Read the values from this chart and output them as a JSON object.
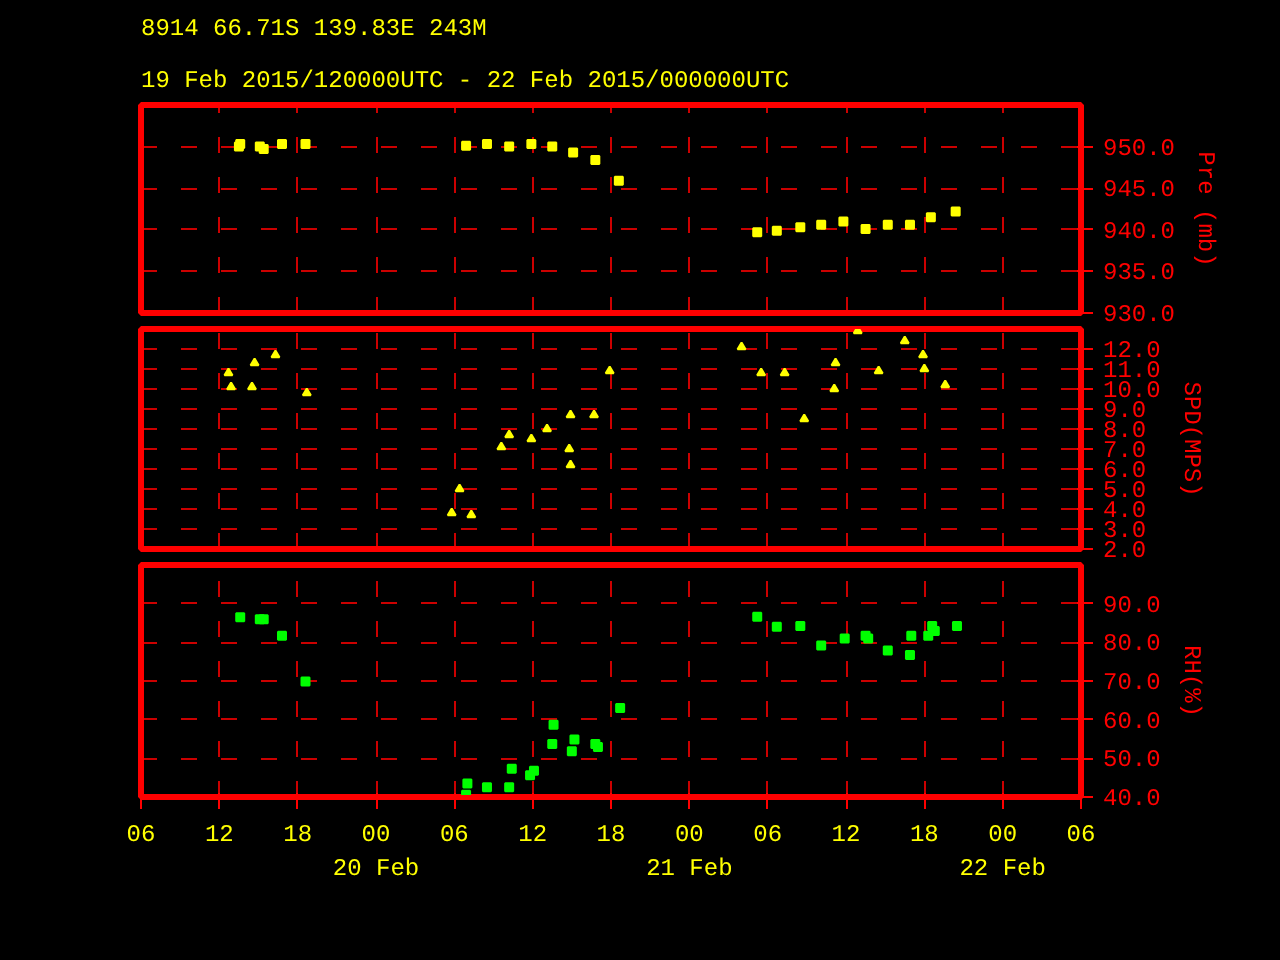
{
  "chart_data": [
    {
      "type": "scatter",
      "title": "8914   66.71S  139.83E   243M",
      "subtitle": "19 Feb 2015/120000UTC - 22 Feb 2015/000000UTC",
      "ylabel": "Pre (mb)",
      "marker": "square",
      "grid": true,
      "tick_labels": "y",
      "xlim": [
        "2015-02-19T06:00",
        "2015-02-22T06:00"
      ],
      "xticks": [
        {
          "value": "2015-02-19T06:00",
          "label": null
        },
        {
          "value": "2015-02-19T12:00",
          "label": null
        },
        {
          "value": "2015-02-19T18:00",
          "label": null
        },
        {
          "value": "2015-02-20T00:00",
          "label": null
        },
        {
          "value": "2015-02-20T06:00",
          "label": null
        },
        {
          "value": "2015-02-20T12:00",
          "label": null
        },
        {
          "value": "2015-02-20T18:00",
          "label": null
        },
        {
          "value": "2015-02-21T00:00",
          "label": null
        },
        {
          "value": "2015-02-21T06:00",
          "label": null
        },
        {
          "value": "2015-02-21T12:00",
          "label": null
        },
        {
          "value": "2015-02-21T18:00",
          "label": null
        },
        {
          "value": "2015-02-22T00:00",
          "label": null
        },
        {
          "value": "2015-02-22T06:00",
          "label": null
        }
      ],
      "ylim": [
        930,
        955
      ],
      "yticks": [
        {
          "value": 930,
          "label": "930.0"
        },
        {
          "value": 935,
          "label": "935.0"
        },
        {
          "value": 940,
          "label": "940.0"
        },
        {
          "value": 945,
          "label": "945.0"
        },
        {
          "value": 950,
          "label": "950.0"
        }
      ],
      "series": [
        {
          "color": "#ffff00",
          "x": [
            "2015-02-19T13:30",
            "2015-02-19T13:36",
            "2015-02-19T15:06",
            "2015-02-19T15:24",
            "2015-02-19T16:48",
            "2015-02-19T18:36",
            "2015-02-20T06:54",
            "2015-02-20T08:30",
            "2015-02-20T10:12",
            "2015-02-20T11:54",
            "2015-02-20T13:30",
            "2015-02-20T15:06",
            "2015-02-20T16:48",
            "2015-02-20T18:36",
            "2015-02-21T05:12",
            "2015-02-21T06:42",
            "2015-02-21T08:30",
            "2015-02-21T10:06",
            "2015-02-21T11:48",
            "2015-02-21T13:30",
            "2015-02-21T15:12",
            "2015-02-21T16:54",
            "2015-02-21T18:30",
            "2015-02-21T20:24"
          ],
          "values": [
            950.0,
            950.3,
            950.0,
            949.7,
            950.3,
            950.3,
            950.1,
            950.3,
            950.0,
            950.3,
            950.0,
            949.3,
            948.4,
            945.9,
            939.7,
            939.9,
            940.3,
            940.6,
            941.0,
            940.1,
            940.6,
            940.6,
            941.5,
            942.2
          ]
        }
      ]
    },
    {
      "type": "scatter",
      "ylabel": "SPD(MPS)",
      "marker": "triangle",
      "grid": true,
      "tick_labels": "y",
      "xlim": [
        "2015-02-19T06:00",
        "2015-02-22T06:00"
      ],
      "xticks": [
        {
          "value": "2015-02-19T06:00",
          "label": null
        },
        {
          "value": "2015-02-19T12:00",
          "label": null
        },
        {
          "value": "2015-02-19T18:00",
          "label": null
        },
        {
          "value": "2015-02-20T00:00",
          "label": null
        },
        {
          "value": "2015-02-20T06:00",
          "label": null
        },
        {
          "value": "2015-02-20T12:00",
          "label": null
        },
        {
          "value": "2015-02-20T18:00",
          "label": null
        },
        {
          "value": "2015-02-21T00:00",
          "label": null
        },
        {
          "value": "2015-02-21T06:00",
          "label": null
        },
        {
          "value": "2015-02-21T12:00",
          "label": null
        },
        {
          "value": "2015-02-21T18:00",
          "label": null
        },
        {
          "value": "2015-02-22T00:00",
          "label": null
        },
        {
          "value": "2015-02-22T06:00",
          "label": null
        }
      ],
      "ylim": [
        2,
        13
      ],
      "yticks": [
        {
          "value": 2,
          "label": "2.0"
        },
        {
          "value": 3,
          "label": "3.0"
        },
        {
          "value": 4,
          "label": "4.0"
        },
        {
          "value": 5,
          "label": "5.0"
        },
        {
          "value": 6,
          "label": "6.0"
        },
        {
          "value": 7,
          "label": "7.0"
        },
        {
          "value": 8,
          "label": "8.0"
        },
        {
          "value": 9,
          "label": "9.0"
        },
        {
          "value": 10,
          "label": "10.0"
        },
        {
          "value": 11,
          "label": "11.0"
        },
        {
          "value": 12,
          "label": "12.0"
        }
      ],
      "series": [
        {
          "color": "#ffff00",
          "x": [
            "2015-02-19T12:42",
            "2015-02-19T12:54",
            "2015-02-19T14:42",
            "2015-02-19T14:30",
            "2015-02-19T16:18",
            "2015-02-19T18:42",
            "2015-02-20T06:24",
            "2015-02-20T05:48",
            "2015-02-20T07:18",
            "2015-02-20T10:12",
            "2015-02-20T09:36",
            "2015-02-20T11:54",
            "2015-02-20T13:06",
            "2015-02-20T14:54",
            "2015-02-20T16:42",
            "2015-02-20T14:48",
            "2015-02-20T14:54",
            "2015-02-20T17:54",
            "2015-02-21T04:00",
            "2015-02-21T05:30",
            "2015-02-21T07:18",
            "2015-02-21T08:48",
            "2015-02-21T11:12",
            "2015-02-21T11:06",
            "2015-02-21T12:54",
            "2015-02-21T14:30",
            "2015-02-21T16:30",
            "2015-02-21T17:54",
            "2015-02-21T18:00",
            "2015-02-21T19:36"
          ],
          "values": [
            10.8,
            10.1,
            11.3,
            10.1,
            11.7,
            9.8,
            5.0,
            3.8,
            3.7,
            7.7,
            7.1,
            7.5,
            8.0,
            8.7,
            8.7,
            7.0,
            6.2,
            10.9,
            12.1,
            10.8,
            10.8,
            8.5,
            11.3,
            10.0,
            12.9,
            10.9,
            12.4,
            11.7,
            11.0,
            10.2
          ]
        }
      ]
    },
    {
      "type": "scatter",
      "ylabel": "RH(%)",
      "marker": "square",
      "grid": true,
      "xlim": [
        "2015-02-19T06:00",
        "2015-02-22T06:00"
      ],
      "xticks": [
        {
          "value": "2015-02-19T06:00",
          "label": "06"
        },
        {
          "value": "2015-02-19T12:00",
          "label": "12"
        },
        {
          "value": "2015-02-19T18:00",
          "label": "18"
        },
        {
          "value": "2015-02-20T00:00",
          "label": "00\n20 Feb"
        },
        {
          "value": "2015-02-20T06:00",
          "label": "06"
        },
        {
          "value": "2015-02-20T12:00",
          "label": "12"
        },
        {
          "value": "2015-02-20T18:00",
          "label": "18"
        },
        {
          "value": "2015-02-21T00:00",
          "label": "00\n21 Feb"
        },
        {
          "value": "2015-02-21T06:00",
          "label": "06"
        },
        {
          "value": "2015-02-21T12:00",
          "label": "12"
        },
        {
          "value": "2015-02-21T18:00",
          "label": "18"
        },
        {
          "value": "2015-02-22T00:00",
          "label": "00\n22 Feb"
        },
        {
          "value": "2015-02-22T06:00",
          "label": "06"
        }
      ],
      "ylim": [
        40,
        100
      ],
      "yticks": [
        {
          "value": 40,
          "label": "40.0"
        },
        {
          "value": 50,
          "label": "50.0"
        },
        {
          "value": 60,
          "label": "60.0"
        },
        {
          "value": 70,
          "label": "70.0"
        },
        {
          "value": 80,
          "label": "80.0"
        },
        {
          "value": 90,
          "label": "90.0"
        }
      ],
      "series": [
        {
          "color": "#00ff00",
          "x": [
            "2015-02-19T13:36",
            "2015-02-19T15:06",
            "2015-02-19T15:24",
            "2015-02-19T16:48",
            "2015-02-19T18:36",
            "2015-02-20T06:54",
            "2015-02-20T07:00",
            "2015-02-20T08:30",
            "2015-02-20T10:12",
            "2015-02-20T10:24",
            "2015-02-20T11:48",
            "2015-02-20T12:06",
            "2015-02-20T13:30",
            "2015-02-20T13:36",
            "2015-02-20T15:00",
            "2015-02-20T15:12",
            "2015-02-20T16:48",
            "2015-02-20T17:00",
            "2015-02-20T18:42",
            "2015-02-21T05:12",
            "2015-02-21T06:42",
            "2015-02-21T08:30",
            "2015-02-21T10:06",
            "2015-02-21T11:54",
            "2015-02-21T13:30",
            "2015-02-21T13:42",
            "2015-02-21T15:12",
            "2015-02-21T16:54",
            "2015-02-21T17:00",
            "2015-02-21T18:18",
            "2015-02-21T18:36",
            "2015-02-21T18:48",
            "2015-02-21T20:30"
          ],
          "values": [
            86.5,
            86.0,
            86.0,
            81.7,
            69.9,
            40.6,
            43.5,
            42.5,
            42.5,
            47.3,
            45.6,
            46.8,
            53.7,
            58.7,
            51.8,
            54.9,
            53.7,
            52.9,
            63.0,
            86.6,
            84.0,
            84.2,
            79.2,
            81.0,
            81.7,
            81.0,
            77.9,
            76.7,
            81.7,
            81.7,
            84.2,
            82.9,
            84.2
          ]
        }
      ]
    }
  ]
}
